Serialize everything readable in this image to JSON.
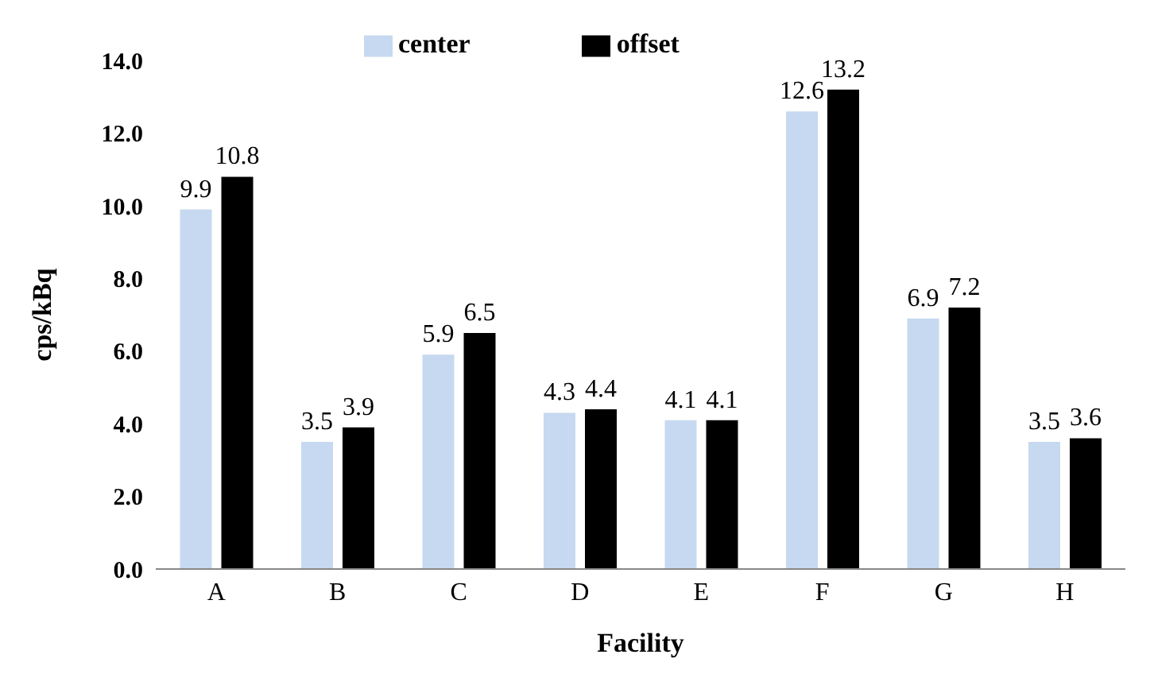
{
  "chart_data": {
    "type": "bar",
    "xlabel": "Facility",
    "ylabel": "cps/kBq",
    "categories": [
      "A",
      "B",
      "C",
      "D",
      "E",
      "F",
      "G",
      "H"
    ],
    "series": [
      {
        "name": "center",
        "color": "#c6d9f0",
        "values": [
          9.9,
          3.5,
          5.9,
          4.3,
          4.1,
          12.6,
          6.9,
          3.5
        ]
      },
      {
        "name": "offset",
        "color": "#000000",
        "values": [
          10.8,
          3.9,
          6.5,
          4.4,
          4.1,
          13.2,
          7.2,
          3.6
        ]
      }
    ],
    "ylim": [
      0,
      14
    ],
    "yticks": [
      {
        "value": 0,
        "label": "0.0"
      },
      {
        "value": 2,
        "label": "2.0"
      },
      {
        "value": 4,
        "label": "4.0"
      },
      {
        "value": 6,
        "label": "6.0"
      },
      {
        "value": 8,
        "label": "8.0"
      },
      {
        "value": 10,
        "label": "10.0"
      },
      {
        "value": 12,
        "label": "12.0"
      },
      {
        "value": 14,
        "label": "14.0"
      }
    ],
    "data_labels": true,
    "legend": "top",
    "grid": false
  }
}
